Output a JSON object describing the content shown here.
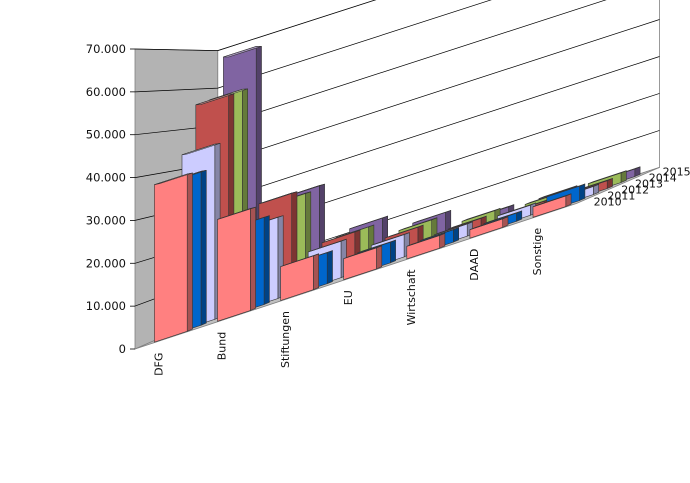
{
  "chart_data": {
    "type": "bar",
    "subtype": "3d-clustered-depth",
    "categories": [
      "DFG",
      "Bund",
      "Stiftungen",
      "EU",
      "Wirtschaft",
      "DAAD",
      "Sonstige"
    ],
    "series": [
      {
        "name": "2010",
        "color": "#ff8080",
        "values": [
          37000,
          24000,
          8000,
          5000,
          3000,
          2000,
          2500
        ]
      },
      {
        "name": "2011",
        "color": "#0066cc",
        "values": [
          37000,
          21000,
          7500,
          5000,
          3000,
          2000,
          3500
        ]
      },
      {
        "name": "2012",
        "color": "#ccccff",
        "values": [
          43000,
          20000,
          9000,
          5500,
          3000,
          2500,
          2000
        ]
      },
      {
        "name": "2013",
        "color": "#c0504d",
        "values": [
          55000,
          25000,
          10000,
          6000,
          3000,
          2000,
          2000
        ]
      },
      {
        "name": "2014",
        "color": "#9bbb59",
        "values": [
          56000,
          24000,
          10000,
          6500,
          3500,
          2500,
          2500
        ]
      },
      {
        "name": "2015",
        "color": "#8064a2",
        "values": [
          67000,
          25000,
          11000,
          7000,
          3000,
          2500,
          2000
        ]
      }
    ],
    "yaxis": {
      "min": 0,
      "max": 70000,
      "ticks": [
        0,
        10000,
        20000,
        30000,
        40000,
        50000,
        60000,
        70000
      ],
      "tick_labels": [
        "0",
        "10.000",
        "20.000",
        "30.000",
        "40.000",
        "50.000",
        "60.000",
        "70.000"
      ]
    },
    "grid": true,
    "legend": "none",
    "title": "",
    "xlabel": "",
    "ylabel": ""
  }
}
